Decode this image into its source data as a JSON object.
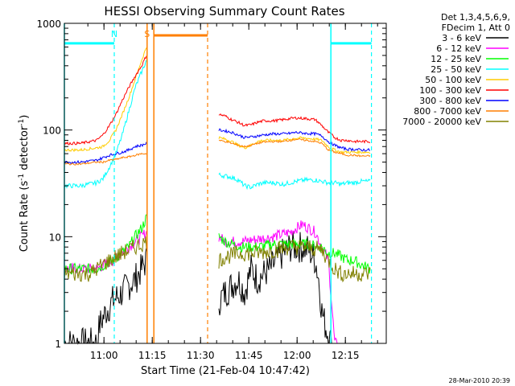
{
  "chart_data": {
    "type": "line",
    "title": "HESSI Observing Summary Count Rates",
    "xlabel": "Start Time (21-Feb-04 10:47:42)",
    "ylabel_main": "Count Rate (s",
    "ylabel_sup1": "-1",
    "ylabel_mid": " detector",
    "ylabel_sup2": "-1",
    "ylabel_end": ")",
    "y_scale": "log",
    "ylim": [
      1,
      1000
    ],
    "xlim_minutes": [
      0,
      100
    ],
    "x_start": "10:47:42",
    "x_ticks": [
      {
        "label": "11:00",
        "minute": 12.3
      },
      {
        "label": "11:15",
        "minute": 27.3
      },
      {
        "label": "11:30",
        "minute": 42.3
      },
      {
        "label": "11:45",
        "minute": 57.3
      },
      {
        "label": "12:00",
        "minute": 72.3
      },
      {
        "label": "12:15",
        "minute": 87.3
      }
    ],
    "y_ticks": [
      {
        "label": "1",
        "value": 1
      },
      {
        "label": "10",
        "value": 10
      },
      {
        "label": "100",
        "value": 100
      },
      {
        "label": "1000",
        "value": 1000
      }
    ],
    "legend_header": [
      "Det 1,3,4,5,6,9,",
      "FDecim 1, Att 0"
    ],
    "legend_position": "right",
    "series": [
      {
        "name": "3 - 6 keV",
        "color": "#000000",
        "x": [
          0,
          10,
          11,
          13,
          15,
          18,
          20,
          22,
          24,
          25.5,
          48,
          50,
          52,
          54,
          56,
          58,
          60,
          62,
          64,
          66,
          68,
          70,
          72,
          74,
          76,
          78,
          79,
          80,
          81,
          82,
          83
        ],
        "y": [
          1,
          1,
          1.5,
          2,
          2.5,
          3,
          3.5,
          4,
          5,
          6,
          2.5,
          3,
          3.5,
          4,
          3,
          5,
          4,
          4.5,
          5,
          6,
          7,
          8,
          8,
          8,
          7.5,
          6,
          4,
          2,
          1.5,
          1.2,
          1
        ]
      },
      {
        "name": "6 - 12 keV",
        "color": "#ff00ff",
        "x": [
          0,
          10,
          15,
          20,
          22,
          24,
          25.5,
          48,
          50,
          55,
          60,
          65,
          70,
          72,
          74,
          76,
          78,
          80,
          82,
          84,
          85
        ],
        "y": [
          5,
          5,
          6,
          8,
          9,
          10,
          11,
          10,
          9,
          9,
          9.5,
          10,
          11,
          12,
          13,
          12,
          11,
          8,
          6,
          1,
          1
        ]
      },
      {
        "name": "12 - 25 keV",
        "color": "#00ff00",
        "x": [
          0,
          10,
          15,
          20,
          22,
          24,
          25.5,
          48,
          50,
          55,
          60,
          65,
          70,
          75,
          80,
          82,
          84,
          86,
          88,
          90,
          92,
          95
        ],
        "y": [
          5,
          5,
          6,
          8,
          10,
          12,
          15,
          10,
          9,
          8,
          8,
          8.5,
          8.5,
          8.5,
          8,
          7,
          7,
          6.5,
          6,
          6,
          5.5,
          5
        ]
      },
      {
        "name": "25 - 50 keV",
        "color": "#00ffff",
        "x": [
          0,
          5,
          10,
          12,
          14,
          16,
          18,
          20,
          22,
          24,
          25.5,
          48,
          50,
          52,
          54,
          56,
          58,
          60,
          62,
          65,
          68,
          70,
          72,
          75,
          78,
          80,
          82,
          84,
          86,
          88,
          90,
          92,
          95
        ],
        "y": [
          30,
          30,
          32,
          35,
          45,
          60,
          90,
          150,
          250,
          350,
          450,
          38,
          37,
          36,
          34,
          30,
          29,
          31,
          32,
          32,
          31,
          32,
          33,
          34,
          34,
          33,
          32,
          32,
          31,
          32,
          32,
          33,
          33
        ]
      },
      {
        "name": "50 - 100 keV",
        "color": "#ffcc00",
        "x": [
          0,
          5,
          10,
          12,
          14,
          16,
          18,
          20,
          22,
          24,
          25.5,
          48,
          50,
          52,
          54,
          56,
          58,
          60,
          62,
          65,
          68,
          70,
          72,
          75,
          78,
          80,
          82,
          84,
          86,
          88,
          90,
          92,
          95
        ],
        "y": [
          65,
          65,
          68,
          70,
          80,
          100,
          140,
          200,
          300,
          450,
          600,
          85,
          82,
          78,
          72,
          68,
          72,
          78,
          80,
          80,
          80,
          82,
          84,
          84,
          82,
          80,
          70,
          65,
          62,
          62,
          62,
          62,
          62
        ]
      },
      {
        "name": "100 - 300 keV",
        "color": "#ff0000",
        "x": [
          0,
          5,
          10,
          12,
          14,
          16,
          18,
          20,
          22,
          24,
          25.5,
          48,
          50,
          52,
          54,
          56,
          58,
          60,
          62,
          65,
          68,
          70,
          72,
          75,
          78,
          80,
          82,
          84,
          86,
          88,
          90,
          92,
          95
        ],
        "y": [
          75,
          75,
          80,
          90,
          110,
          140,
          190,
          250,
          320,
          400,
          500,
          140,
          135,
          125,
          118,
          110,
          112,
          118,
          122,
          122,
          125,
          128,
          130,
          128,
          125,
          110,
          95,
          85,
          80,
          80,
          78,
          78,
          78
        ]
      },
      {
        "name": "300 - 800 keV",
        "color": "#0000ff",
        "x": [
          0,
          5,
          10,
          12,
          14,
          16,
          18,
          20,
          22,
          24,
          25.5,
          48,
          50,
          52,
          54,
          56,
          58,
          60,
          62,
          65,
          68,
          70,
          72,
          75,
          78,
          80,
          82,
          84,
          86,
          88,
          90,
          92,
          95
        ],
        "y": [
          50,
          50,
          52,
          55,
          58,
          60,
          62,
          65,
          70,
          72,
          75,
          100,
          98,
          95,
          90,
          85,
          86,
          88,
          90,
          92,
          92,
          93,
          95,
          93,
          92,
          88,
          78,
          72,
          68,
          66,
          66,
          65,
          65
        ]
      },
      {
        "name": "800 - 7000 keV",
        "color": "#ff7f00",
        "x": [
          0,
          5,
          10,
          12,
          14,
          16,
          18,
          20,
          22,
          24,
          25.5,
          48,
          50,
          52,
          54,
          56,
          58,
          60,
          62,
          65,
          68,
          70,
          72,
          75,
          78,
          80,
          82,
          84,
          86,
          88,
          90,
          92,
          95
        ],
        "y": [
          48,
          48,
          50,
          50,
          52,
          53,
          55,
          56,
          58,
          60,
          60,
          80,
          78,
          75,
          72,
          70,
          72,
          75,
          77,
          78,
          78,
          80,
          82,
          80,
          78,
          75,
          65,
          62,
          60,
          58,
          58,
          57,
          57
        ]
      },
      {
        "name": "7000 - 20000 keV",
        "color": "#808000",
        "x": [
          0,
          5,
          8,
          10,
          12,
          14,
          16,
          18,
          20,
          22,
          24,
          25.5,
          48,
          50,
          55,
          60,
          65,
          70,
          75,
          80,
          82,
          84,
          86,
          88,
          90,
          92,
          95
        ],
        "y": [
          4.5,
          4.5,
          4.5,
          5,
          5.5,
          6,
          6.5,
          7,
          7.5,
          8,
          8.5,
          9,
          6,
          6.5,
          7,
          7,
          7.5,
          8,
          8,
          7.5,
          6,
          5,
          4.5,
          4.5,
          4.5,
          4.5,
          4.5
        ]
      }
    ],
    "markers": [
      {
        "label": "N",
        "minute": 15.5,
        "color": "#00ffff"
      },
      {
        "label": "S",
        "minute": 25.7,
        "color": "#ff7f00"
      }
    ],
    "night_bars": [
      {
        "x1": 0,
        "x2": 15.5,
        "value": 650,
        "color": "#00ffff"
      },
      {
        "x1": 27.8,
        "x2": 44.5,
        "value": 770,
        "color": "#ff7f00"
      },
      {
        "x1": 82.8,
        "x2": 95.4,
        "value": 650,
        "color": "#00ffff"
      }
    ],
    "dashed_lines": [
      {
        "minute": 15.5,
        "color": "#00ffff"
      },
      {
        "minute": 44.5,
        "color": "#ff7f00"
      },
      {
        "minute": 95.4,
        "color": "#00ffff"
      }
    ],
    "solid_lines": [
      {
        "minute": 0,
        "color": "#00ffff"
      },
      {
        "minute": 25.7,
        "color": "#ff7f00"
      },
      {
        "minute": 27.8,
        "color": "#ff7f00"
      },
      {
        "minute": 82.8,
        "color": "#00ffff"
      }
    ],
    "grid": false
  },
  "timestamp": "28-Mar-2010 20:39"
}
